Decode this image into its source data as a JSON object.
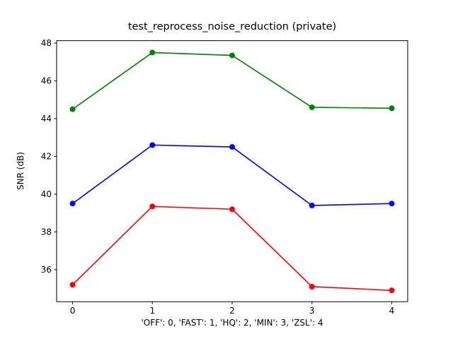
{
  "chart_data": {
    "type": "line",
    "title": "test_reprocess_noise_reduction (private)",
    "xlabel": "'OFF': 0, 'FAST': 1, 'HQ': 2, 'MIN': 3, 'ZSL': 4",
    "ylabel": "SNR (dB)",
    "x": [
      0,
      1,
      2,
      3,
      4
    ],
    "xtick_labels": [
      "0",
      "1",
      "2",
      "3",
      "4"
    ],
    "yticks": [
      36,
      38,
      40,
      42,
      44,
      46,
      48
    ],
    "xlim": [
      -0.2,
      4.2
    ],
    "ylim": [
      34.3,
      48.13
    ],
    "grid": false,
    "legend": "none",
    "series": [
      {
        "name": "green-series",
        "color": "#008000",
        "values": [
          44.5,
          47.5,
          47.35,
          44.6,
          44.55
        ]
      },
      {
        "name": "blue-series",
        "color": "#0000ff",
        "values": [
          39.5,
          42.6,
          42.5,
          39.4,
          39.5
        ]
      },
      {
        "name": "red-series",
        "color": "#ff0000",
        "values": [
          35.2,
          39.35,
          39.2,
          35.1,
          34.9
        ]
      }
    ]
  }
}
